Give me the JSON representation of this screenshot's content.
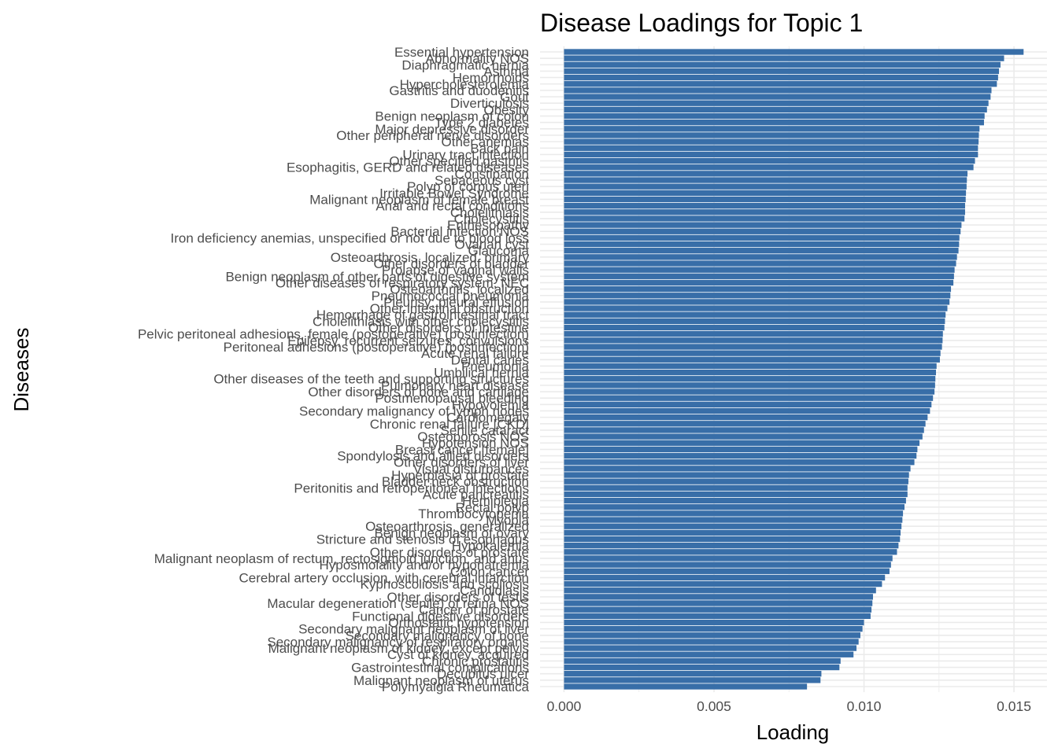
{
  "chart_data": {
    "type": "bar",
    "orientation": "horizontal",
    "title": "Disease Loadings for Topic 1",
    "xlabel": "Loading",
    "ylabel": "Diseases",
    "xlim": [
      -0.0008,
      0.0161
    ],
    "xticks": [
      0.0,
      0.005,
      0.01,
      0.015
    ],
    "xtick_labels": [
      "0.000",
      "0.005",
      "0.010",
      "0.015"
    ],
    "grid": true,
    "bar_color": "#386ea8",
    "categories": [
      "Essential hypertension",
      "Abnormality NOS",
      "Diaphragmatic hernia",
      "Asthma",
      "Hemorrhoids",
      "Hypercholesterolemia",
      "Gastritis and duodenitis",
      "Gout",
      "Diverticulosis",
      "Obesity",
      "Benign neoplasm of colon",
      "Type 2 diabetes",
      "Major depressive disorder",
      "Other peripheral nerve disorders",
      "Other anemias",
      "Back pain",
      "Urinary tract infection",
      "Other specified gastritis",
      "Esophagitis, GERD and related diseases",
      "Constipation",
      "Sebaceous cyst",
      "Polyp of corpus uteri",
      "Irritable Bowel Syndrome",
      "Malignant neoplasm of female breast",
      "Anal and rectal conditions",
      "Cholelithiasis",
      "Cholecystitis",
      "Enthesopathy",
      "Bacterial infection NOS",
      "Iron deficiency anemias, unspecified or not due to blood loss",
      "Ovarian cyst",
      "Glaucoma",
      "Osteoarthrosis, localized, primary",
      "Other disorders of bladder",
      "Prolapse of vaginal walls",
      "Benign neoplasm of other parts of digestive system",
      "Other diseases of respiratory system, NEC",
      "Osteoarthritis; localized",
      "Pneumococcal pneumonia",
      "Pleurisy; pleural effusion",
      "Other intestinal obstruction",
      "Hemorrhage of gastrointestinal tract",
      "Cholelithiasis with other cholecystitis",
      "Other disorders of intestine",
      "Pelvic peritoneal adhesions, female (postoperative) (postinfection)",
      "Epilepsy, recurrent seizures, convulsions",
      "Peritoneal adhesions (postoperative) (postinfection)",
      "Acute renal failure",
      "Dental caries",
      "Pneumonia",
      "Umbilical hernia",
      "Other diseases of the teeth and supporting structures",
      "Pulmonary heart disease",
      "Other disorders of bone and cartilage",
      "Postmenopausal bleeding",
      "Hypovolemia",
      "Secondary malignancy of lymph nodes",
      "Cardiomegaly",
      "Chronic renal failure [CKD]",
      "Senile cataract",
      "Osteoporosis NOS",
      "Hypotension NOS",
      "Breast cancer [female]",
      "Spondylosis and allied disorders",
      "Other disorders of liver",
      "Visual disturbances",
      "Hyperplasia of prostate",
      "Bladder neck obstruction",
      "Peritonitis and retroperitoneal infections",
      "Acute pancreatitis",
      "Hemiplegia",
      "Rectal polyp",
      "Thrombocytopenia",
      "Myopia",
      "Osteoarthrosis, generalized",
      "Benign neoplasm of ovary",
      "Stricture and stenosis of esophagus",
      "Hypokalemia",
      "Other disorders of prostate",
      "Malignant neoplasm of rectum, rectosigmoid junction, and anus",
      "Hyposmolality and/or hyponatremia",
      "Colon cancer",
      "Cerebral artery occlusion, with cerebral infarction",
      "Kyphoscoliosis and scoliosis",
      "Candidiasis",
      "Other disorders of testis",
      "Macular degeneration (senile) of retina NOS",
      "Cancer of prostate",
      "Functional digestive disorders",
      "Orthostatic hypotension",
      "Secondary malignant neoplasm of liver",
      "Secondary malignancy of bone",
      "Secondary malignancy of respiratory organs",
      "Malignant neoplasm of kidney, except pelvis",
      "Cyst of kidney, acquired",
      "Chronic prostatitis",
      "Gastrointestinal complications",
      "Decubitus ulcer",
      "Malignant neoplasm of uterus",
      "Polymyalgia Rheumatica"
    ],
    "values": [
      0.01532,
      0.01467,
      0.01455,
      0.0145,
      0.01447,
      0.01443,
      0.01425,
      0.01422,
      0.01415,
      0.0141,
      0.01402,
      0.014,
      0.01385,
      0.01383,
      0.01382,
      0.0138,
      0.0138,
      0.0137,
      0.01365,
      0.01345,
      0.01343,
      0.01342,
      0.0134,
      0.01339,
      0.01337,
      0.01337,
      0.01335,
      0.01325,
      0.01322,
      0.01318,
      0.01317,
      0.01315,
      0.0131,
      0.01307,
      0.01302,
      0.013,
      0.01298,
      0.0129,
      0.01288,
      0.01285,
      0.01278,
      0.01272,
      0.0127,
      0.01268,
      0.01263,
      0.01262,
      0.0126,
      0.01255,
      0.01253,
      0.01242,
      0.0124,
      0.01238,
      0.01237,
      0.01235,
      0.0123,
      0.01225,
      0.0122,
      0.01212,
      0.01205,
      0.012,
      0.01195,
      0.01185,
      0.01178,
      0.01175,
      0.01168,
      0.01155,
      0.0115,
      0.01148,
      0.01145,
      0.01145,
      0.0114,
      0.01135,
      0.0113,
      0.01128,
      0.01125,
      0.01122,
      0.0112,
      0.01115,
      0.0111,
      0.01095,
      0.0109,
      0.01085,
      0.0107,
      0.0106,
      0.0104,
      0.0103,
      0.01028,
      0.01025,
      0.01022,
      0.01,
      0.00995,
      0.00988,
      0.00982,
      0.00975,
      0.00965,
      0.00922,
      0.00918,
      0.00858,
      0.00855,
      0.0081
    ]
  }
}
